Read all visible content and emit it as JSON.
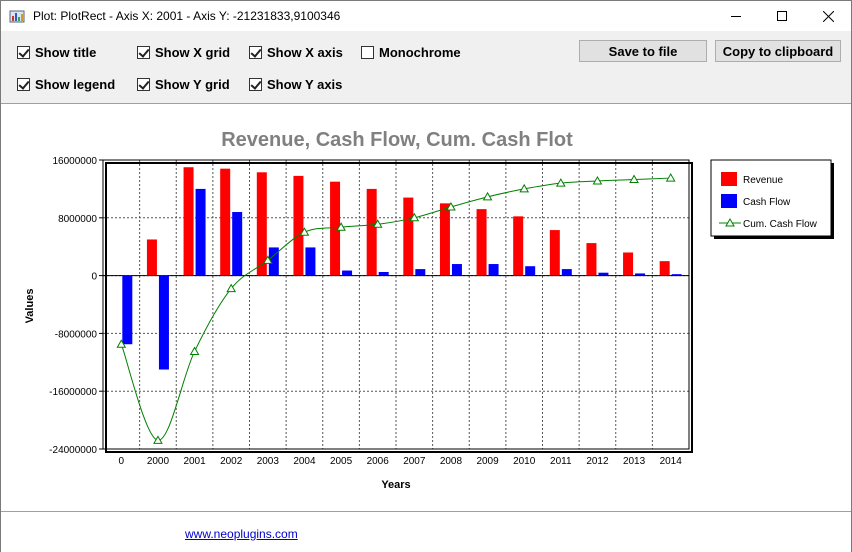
{
  "window": {
    "title": "Plot: PlotRect - Axis X: 2001 - Axis Y: -21231833,9100346",
    "icon": "chart-app-icon",
    "controls": [
      "minimize-icon",
      "maximize-icon",
      "close-icon"
    ]
  },
  "options": {
    "show_title": {
      "label": "Show title",
      "checked": true
    },
    "show_x_grid": {
      "label": "Show X grid",
      "checked": true
    },
    "show_x_axis": {
      "label": "Show X axis",
      "checked": true
    },
    "monochrome": {
      "label": "Monochrome",
      "checked": false
    },
    "show_legend": {
      "label": "Show legend",
      "checked": true
    },
    "show_y_grid": {
      "label": "Show Y grid",
      "checked": true
    },
    "show_y_axis": {
      "label": "Show Y axis",
      "checked": true
    }
  },
  "buttons": {
    "save": "Save to file",
    "copy": "Copy to clipboard"
  },
  "footer": {
    "link": "www.neoplugins.com"
  },
  "chart_data": {
    "type": "bar",
    "title": "Revenue, Cash Flow, Cum. Cash Flot",
    "xlabel": "Years",
    "ylabel": "Values",
    "categories": [
      "0",
      "2000",
      "2001",
      "2002",
      "2003",
      "2004",
      "2005",
      "2006",
      "2007",
      "2008",
      "2009",
      "2010",
      "2011",
      "2012",
      "2013",
      "2014"
    ],
    "ylim": [
      -24000000,
      16000000
    ],
    "yticks": [
      "16000000",
      "8000000",
      "0",
      "-8000000",
      "-16000000",
      "-24000000"
    ],
    "ytick_values": [
      16000000,
      8000000,
      0,
      -8000000,
      -16000000,
      -24000000
    ],
    "grid": true,
    "legend_position": "right",
    "series": [
      {
        "name": "Revenue",
        "kind": "bar",
        "color": "#ff0000",
        "values": [
          0,
          5000000,
          15000000,
          14800000,
          14300000,
          13800000,
          13000000,
          12000000,
          10800000,
          10000000,
          9200000,
          8200000,
          6300000,
          4500000,
          3200000,
          2000000
        ]
      },
      {
        "name": "Cash Flow",
        "kind": "bar",
        "color": "#0000ff",
        "values": [
          -9500000,
          -13000000,
          12000000,
          8800000,
          3900000,
          3900000,
          700000,
          500000,
          900000,
          1600000,
          1600000,
          1300000,
          900000,
          400000,
          300000,
          200000
        ]
      },
      {
        "name": "Cum. Cash Flow",
        "kind": "line",
        "color": "#008000",
        "marker": "triangle",
        "values": [
          -9500000,
          -22800000,
          -10500000,
          -1800000,
          2100000,
          6000000,
          6700000,
          7100000,
          8000000,
          9500000,
          10900000,
          12000000,
          12800000,
          13100000,
          13300000,
          13500000
        ]
      }
    ]
  }
}
